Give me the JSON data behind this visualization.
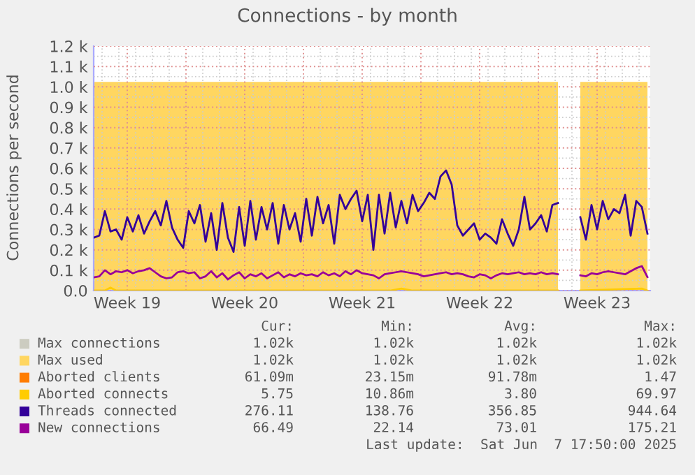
{
  "chart_data": {
    "type": "line",
    "title": "Connections - by month",
    "ylabel": "Connections per second",
    "x": [
      "2025-05-06T12:00",
      "2025-05-06T20:00",
      "2025-05-07T04:00",
      "2025-05-07T12:00",
      "2025-05-07T20:00",
      "2025-05-08T04:00",
      "2025-05-08T12:00",
      "2025-05-08T20:00",
      "2025-05-09T04:00",
      "2025-05-09T12:00",
      "2025-05-09T20:00",
      "2025-05-10T04:00",
      "2025-05-10T12:00",
      "2025-05-10T20:00",
      "2025-05-11T04:00",
      "2025-05-11T12:00",
      "2025-05-11T20:00",
      "2025-05-12T04:00",
      "2025-05-12T12:00",
      "2025-05-12T20:00",
      "2025-05-13T04:00",
      "2025-05-13T12:00",
      "2025-05-13T20:00",
      "2025-05-14T04:00",
      "2025-05-14T12:00",
      "2025-05-14T20:00",
      "2025-05-15T04:00",
      "2025-05-15T12:00",
      "2025-05-15T20:00",
      "2025-05-16T04:00",
      "2025-05-16T12:00",
      "2025-05-16T20:00",
      "2025-05-17T04:00",
      "2025-05-17T12:00",
      "2025-05-17T20:00",
      "2025-05-18T04:00",
      "2025-05-18T12:00",
      "2025-05-18T20:00",
      "2025-05-19T04:00",
      "2025-05-19T12:00",
      "2025-05-19T20:00",
      "2025-05-20T04:00",
      "2025-05-20T12:00",
      "2025-05-20T20:00",
      "2025-05-21T04:00",
      "2025-05-21T12:00",
      "2025-05-21T20:00",
      "2025-05-22T04:00",
      "2025-05-22T12:00",
      "2025-05-22T20:00",
      "2025-05-23T04:00",
      "2025-05-23T12:00",
      "2025-05-23T20:00",
      "2025-05-24T04:00",
      "2025-05-24T12:00",
      "2025-05-24T20:00",
      "2025-05-25T04:00",
      "2025-05-25T12:00",
      "2025-05-25T20:00",
      "2025-05-26T04:00",
      "2025-05-26T12:00",
      "2025-05-26T20:00",
      "2025-05-27T04:00",
      "2025-05-27T12:00",
      "2025-05-27T20:00",
      "2025-05-28T04:00",
      "2025-05-28T12:00",
      "2025-05-28T20:00",
      "2025-05-29T04:00",
      "2025-05-29T12:00",
      "2025-05-29T20:00",
      "2025-05-30T04:00",
      "2025-05-30T12:00",
      "2025-05-30T20:00",
      "2025-05-31T04:00",
      "2025-05-31T12:00",
      "2025-05-31T20:00",
      "2025-06-01T04:00",
      "2025-06-01T12:00",
      "2025-06-01T20:00",
      "2025-06-02T04:00",
      "2025-06-02T12:00",
      "2025-06-02T20:00",
      "2025-06-03T04:00",
      "2025-06-03T12:00",
      "2025-06-03T20:00",
      "2025-06-04T04:00",
      "2025-06-04T12:00",
      "2025-06-04T20:00",
      "2025-06-05T04:00",
      "2025-06-05T12:00",
      "2025-06-05T20:00",
      "2025-06-06T04:00",
      "2025-06-06T12:00",
      "2025-06-06T20:00",
      "2025-06-07T04:00",
      "2025-06-07T12:00",
      "2025-06-07T20:00",
      "2025-06-08T04:00",
      "2025-06-08T12:00"
    ],
    "series": [
      {
        "name": "Max connections",
        "type": "area",
        "color": "#ccccc0",
        "values": [
          null,
          null,
          null,
          null,
          null,
          null,
          null,
          null,
          null,
          null,
          null,
          null,
          null,
          null,
          null,
          null,
          null,
          null,
          null,
          null,
          null,
          null,
          null,
          null,
          null,
          null,
          null,
          null,
          null,
          null,
          null,
          null,
          null,
          null,
          null,
          null,
          null,
          null,
          null,
          null,
          null,
          null,
          null,
          null,
          null,
          null,
          null,
          null,
          null,
          null,
          null,
          null,
          null,
          null,
          null,
          null,
          null,
          null,
          null,
          null,
          null,
          null,
          null,
          null,
          null,
          null,
          null,
          null,
          null,
          null,
          null,
          null,
          null,
          null,
          null,
          null,
          null,
          null,
          null,
          null,
          null,
          null,
          null,
          null,
          null,
          null,
          null,
          null,
          null,
          null,
          null,
          null,
          null,
          null,
          null,
          null,
          null,
          null,
          null,
          null
        ]
      },
      {
        "name": "Max used",
        "type": "area",
        "color": "#ffd660",
        "values": [
          1024,
          1024,
          1024,
          1024,
          1024,
          1024,
          1024,
          1024,
          1024,
          1024,
          1024,
          1024,
          1024,
          1024,
          1024,
          1024,
          1024,
          1024,
          1024,
          1024,
          1024,
          1024,
          1024,
          1024,
          1024,
          1024,
          1024,
          1024,
          1024,
          1024,
          1024,
          1024,
          1024,
          1024,
          1024,
          1024,
          1024,
          1024,
          1024,
          1024,
          1024,
          1024,
          1024,
          1024,
          1024,
          1024,
          1024,
          1024,
          1024,
          1024,
          1024,
          1024,
          1024,
          1024,
          1024,
          1024,
          1024,
          1024,
          1024,
          1024,
          1024,
          1024,
          1024,
          1024,
          1024,
          1024,
          1024,
          1024,
          1024,
          1024,
          1024,
          1024,
          1024,
          1024,
          1024,
          1024,
          1024,
          1024,
          1024,
          1024,
          1024,
          1024,
          1024,
          1024,
          null,
          null,
          null,
          1024,
          1024,
          1024,
          1024,
          1024,
          1024,
          1024,
          1024,
          1024,
          1024,
          1024,
          1024,
          1024
        ]
      },
      {
        "name": "Aborted clients",
        "color": "#ff7d00",
        "values": [
          null,
          null,
          null,
          null,
          null,
          null,
          null,
          null,
          null,
          null,
          null,
          null,
          null,
          null,
          null,
          null,
          null,
          null,
          null,
          null,
          null,
          null,
          null,
          null,
          null,
          null,
          null,
          null,
          null,
          null,
          null,
          null,
          null,
          null,
          null,
          null,
          null,
          null,
          null,
          null,
          null,
          null,
          null,
          null,
          null,
          null,
          null,
          null,
          null,
          null,
          null,
          null,
          null,
          null,
          null,
          null,
          null,
          null,
          null,
          null,
          null,
          null,
          null,
          null,
          null,
          null,
          null,
          null,
          null,
          null,
          null,
          null,
          null,
          null,
          null,
          null,
          null,
          null,
          null,
          null,
          null,
          null,
          null,
          null,
          null,
          null,
          null,
          null,
          null,
          null,
          null,
          null,
          null,
          null,
          null,
          null,
          null,
          null,
          null,
          null
        ]
      },
      {
        "name": "Aborted connects",
        "color": "#ffcc00",
        "x": [
          "2025-05-06T12:00",
          "2025-05-07T04:00",
          "2025-05-07T12:00",
          "2025-05-07T20:00",
          "2025-05-24T04:00",
          "2025-05-24T20:00",
          "2025-05-25T12:00",
          "2025-06-03T04:00",
          "2025-06-03T12:00",
          "2025-06-04T12:00",
          "2025-06-08T04:00",
          "2025-06-08T12:00"
        ],
        "values": [
          0,
          0,
          15,
          0,
          0,
          10,
          0,
          0,
          null,
          0,
          10,
          0
        ]
      },
      {
        "name": "Threads connected",
        "color": "#330099",
        "values": [
          260,
          270,
          390,
          290,
          300,
          250,
          360,
          290,
          370,
          280,
          340,
          390,
          320,
          440,
          310,
          250,
          210,
          390,
          330,
          420,
          240,
          380,
          200,
          430,
          260,
          190,
          410,
          220,
          440,
          250,
          410,
          300,
          430,
          230,
          420,
          300,
          380,
          240,
          450,
          270,
          460,
          330,
          420,
          230,
          470,
          400,
          450,
          490,
          340,
          470,
          200,
          470,
          280,
          480,
          310,
          440,
          330,
          470,
          390,
          430,
          480,
          450,
          560,
          590,
          520,
          320,
          270,
          300,
          330,
          250,
          280,
          260,
          230,
          350,
          280,
          220,
          300,
          460,
          300,
          330,
          370,
          290,
          420,
          430,
          null,
          null,
          null,
          360,
          250,
          420,
          300,
          440,
          350,
          400,
          380,
          470,
          270,
          440,
          410,
          280
        ]
      },
      {
        "name": "New connections",
        "color": "#990099",
        "values": [
          65,
          70,
          100,
          80,
          95,
          90,
          100,
          85,
          95,
          100,
          110,
          90,
          70,
          60,
          65,
          90,
          95,
          85,
          90,
          60,
          70,
          95,
          65,
          85,
          55,
          75,
          90,
          60,
          80,
          70,
          85,
          60,
          75,
          90,
          65,
          80,
          70,
          85,
          75,
          80,
          70,
          90,
          75,
          85,
          70,
          95,
          80,
          100,
          85,
          80,
          75,
          60,
          80,
          85,
          90,
          95,
          90,
          85,
          80,
          70,
          75,
          80,
          85,
          90,
          80,
          85,
          80,
          70,
          65,
          80,
          75,
          60,
          75,
          85,
          80,
          85,
          90,
          80,
          85,
          80,
          90,
          80,
          85,
          80,
          null,
          null,
          null,
          75,
          70,
          85,
          80,
          90,
          95,
          90,
          85,
          80,
          95,
          110,
          120,
          66
        ]
      }
    ],
    "xlim": [
      "2025-05-06T12:00",
      "2025-06-08T16:00"
    ],
    "xticks": [
      {
        "value": "2025-05-08T12:00",
        "label": "Week 19"
      },
      {
        "value": "2025-05-12T00:00",
        "label": null
      },
      {
        "value": "2025-05-15T12:00",
        "label": "Week 20"
      },
      {
        "value": "2025-05-19T00:00",
        "label": null
      },
      {
        "value": "2025-05-22T12:00",
        "label": "Week 21"
      },
      {
        "value": "2025-05-26T00:00",
        "label": null
      },
      {
        "value": "2025-05-29T12:00",
        "label": "Week 22"
      },
      {
        "value": "2025-06-02T00:00",
        "label": null
      },
      {
        "value": "2025-06-05T12:00",
        "label": "Week 23"
      }
    ],
    "ylim": [
      0,
      1200
    ],
    "yticks": [
      {
        "value": 0,
        "label": "0.0"
      },
      {
        "value": 100,
        "label": "0.1 k"
      },
      {
        "value": 200,
        "label": "0.2 k"
      },
      {
        "value": 300,
        "label": "0.3 k"
      },
      {
        "value": 400,
        "label": "0.4 k"
      },
      {
        "value": 500,
        "label": "0.5 k"
      },
      {
        "value": 600,
        "label": "0.6 k"
      },
      {
        "value": 700,
        "label": "0.7 k"
      },
      {
        "value": 800,
        "label": "0.8 k"
      },
      {
        "value": 900,
        "label": "0.9 k"
      },
      {
        "value": 1000,
        "label": "1.0 k"
      },
      {
        "value": 1100,
        "label": "1.1 k"
      },
      {
        "value": 1200,
        "label": "1.2 k"
      }
    ],
    "grid": true,
    "legend": "bottom",
    "marker": "none",
    "line_style": "solid",
    "annotations": [
      "Cur:",
      "Min:",
      "Avg:",
      "Max:",
      "1.02k",
      "1.02k",
      "1.02k",
      "1.02k",
      "1.02k",
      "1.02k",
      "1.02k",
      "1.02k",
      "61.09m",
      "23.15m",
      "91.78m",
      "1.47",
      "5.75",
      "10.86m",
      "3.80",
      "69.97",
      "276.11",
      "138.76",
      "356.85",
      "944.64",
      "66.49",
      "22.14",
      "73.01",
      "175.21",
      "Last update:  Sat Jun  7 17:50:00 2025"
    ]
  }
}
